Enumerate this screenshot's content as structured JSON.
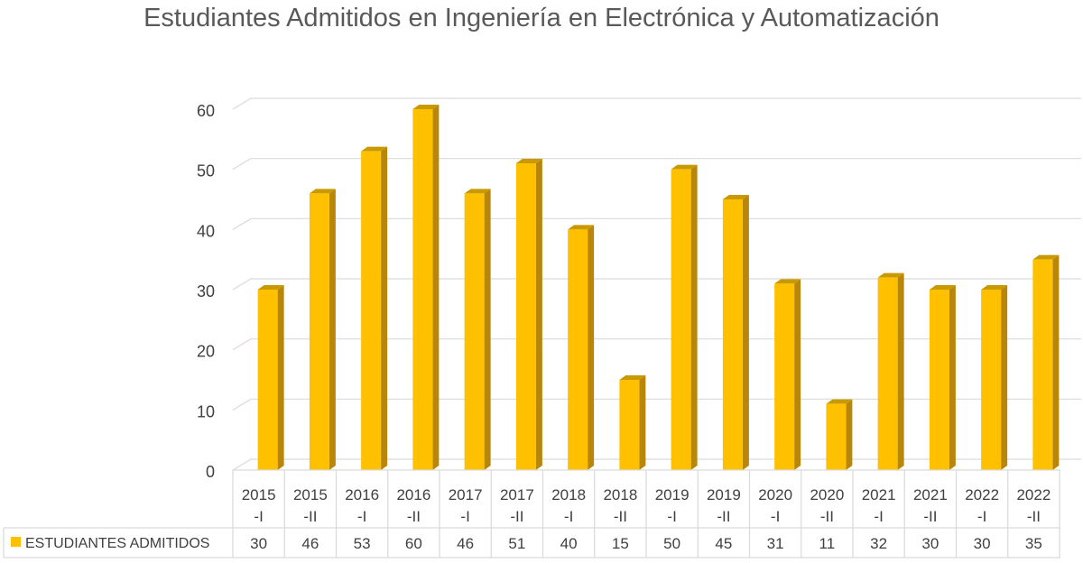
{
  "chart_data": {
    "type": "bar",
    "title": "Estudiantes Admitidos en Ingeniería en Electrónica y Automatización",
    "categories": [
      [
        "2015",
        "-I"
      ],
      [
        "2015",
        "-II"
      ],
      [
        "2016",
        "-I"
      ],
      [
        "2016",
        "-II"
      ],
      [
        "2017",
        "-I"
      ],
      [
        "2017",
        "-II"
      ],
      [
        "2018",
        "-I"
      ],
      [
        "2018",
        "-II"
      ],
      [
        "2019",
        "-I"
      ],
      [
        "2019",
        "-II"
      ],
      [
        "2020",
        "-I"
      ],
      [
        "2020",
        "-II"
      ],
      [
        "2021",
        "-I"
      ],
      [
        "2021",
        "-II"
      ],
      [
        "2022",
        "-I"
      ],
      [
        "2022",
        "-II"
      ]
    ],
    "series": [
      {
        "name": "ESTUDIANTES ADMITIDOS",
        "values": [
          30,
          46,
          53,
          60,
          46,
          51,
          40,
          15,
          50,
          45,
          31,
          11,
          32,
          30,
          30,
          35
        ]
      }
    ],
    "yticks": [
      "0",
      "10",
      "20",
      "30",
      "40",
      "50",
      "60"
    ],
    "ylim": [
      0,
      60
    ],
    "grid": true,
    "legend": "data-table-left",
    "colors": {
      "bar_front": "#FFC000",
      "bar_side": "#B8860B",
      "bar_top": "#C99A00",
      "grid": "#D9D9D9",
      "text": "#404040",
      "title": "#595959"
    }
  }
}
